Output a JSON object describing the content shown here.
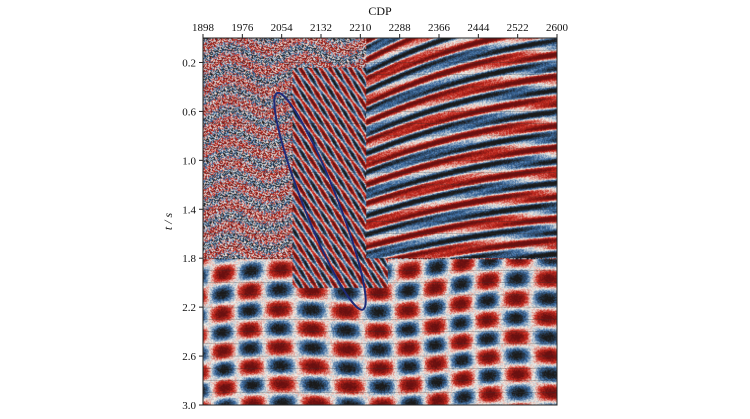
{
  "chart_data": {
    "type": "heatmap",
    "title": "",
    "xlabel": "CDP",
    "ylabel": "t / s",
    "x_axis_position": "top",
    "y_axis_inverted": true,
    "xlim": [
      1898,
      2600
    ],
    "ylim": [
      0,
      3.0
    ],
    "xticks": [
      1898,
      1976,
      2054,
      2132,
      2210,
      2288,
      2366,
      2444,
      2522,
      2600
    ],
    "yticks": [
      0.2,
      0.6,
      1.0,
      1.4,
      1.8,
      2.2,
      2.6,
      3.0
    ],
    "ytick_labels": [
      "0.2",
      "0.6",
      "1.0",
      "1.4",
      "1.8",
      "2.2",
      "2.6",
      "3.0"
    ],
    "grid": true,
    "colormap": [
      "#1a1a1a",
      "#3a6aa0",
      "#f4f0e8",
      "#c62a1f",
      "#6a1010"
    ],
    "annotation": {
      "shape": "ellipse",
      "color": "#1e2a78",
      "cdp_top": 2045,
      "t_top": 0.45,
      "cdp_bottom": 2215,
      "t_bottom": 2.22
    }
  }
}
